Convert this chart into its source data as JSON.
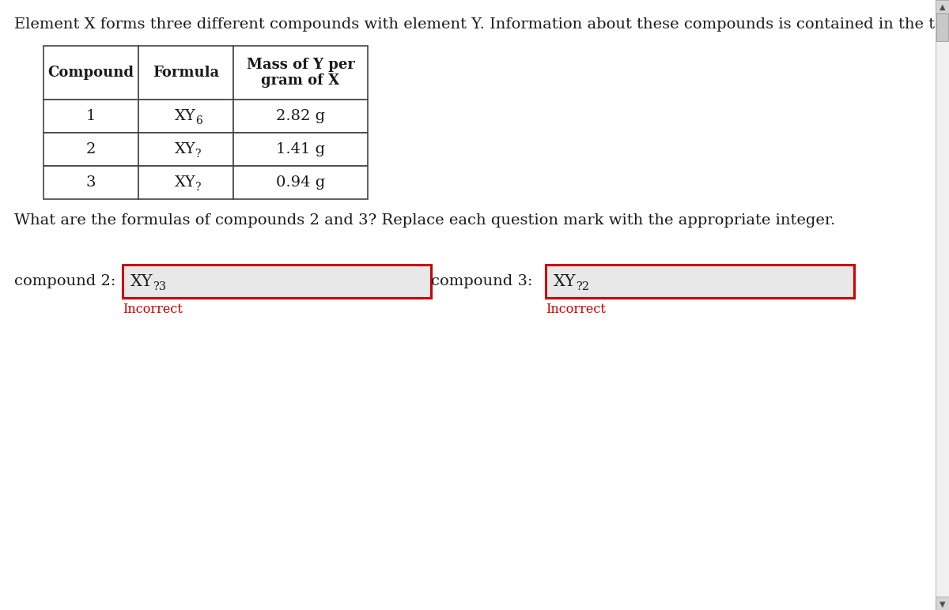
{
  "page_bg": "#ffffff",
  "title_text": "Element X forms three different compounds with element Y. Information about these compounds is contained in the table.",
  "question_text": "What are the formulas of compounds 2 and 3? Replace each question mark with the appropriate integer.",
  "table_headers": [
    "Compound",
    "Formula",
    "Mass of Y per\ngram of X"
  ],
  "table_formula_col": [
    "XY",
    "XY",
    "XY"
  ],
  "table_formula_subs": [
    "6",
    "?",
    "?"
  ],
  "table_col1": [
    "1",
    "2",
    "3"
  ],
  "table_col3": [
    "2.82 g",
    "1.41 g",
    "0.94 g"
  ],
  "compound2_label": "compound 2: ",
  "compound2_xy": "XY",
  "compound2_sub": "?3",
  "compound3_label": "compound 3: ",
  "compound3_xy": "XY",
  "compound3_sub": "?2",
  "incorrect_color": "#cc0000",
  "incorrect_text": "Incorrect",
  "text_color": "#1a1a1a",
  "box_border_color": "#cc0000",
  "box_fill_color": "#e8e8e8",
  "table_border_color": "#444444",
  "scrollbar_color": "#c0c0c0",
  "scrollbar_arrow_color": "#808080"
}
